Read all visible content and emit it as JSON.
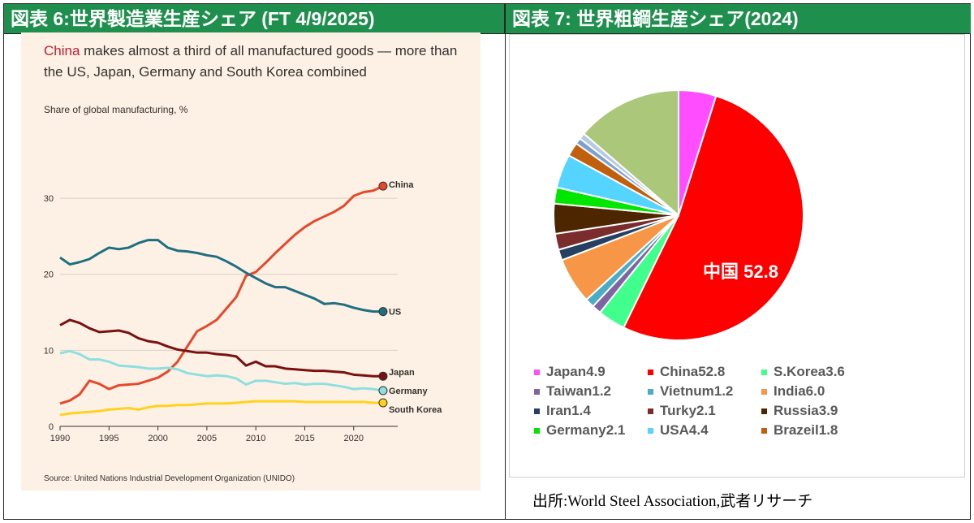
{
  "header_left": "図表 6:世界製造業生産シェア (FT 4/9/2025)",
  "header_right": "図表 7: 世界粗鋼生産シェア(2024)",
  "ft": {
    "title_red": "China",
    "title_rest": " makes almost a third of all manufactured goods — more than the US, Japan, Germany and South Korea combined",
    "subtitle": "Share of global manufacturing, %",
    "source": "Source: United Nations Industrial Development Organization (UNIDO)"
  },
  "pie_source": "出所:World Steel Association,武者リサーチ",
  "chart_data": [
    {
      "type": "line",
      "title": "China makes almost a third of all manufactured goods — more than the US, Japan, Germany and South Korea combined",
      "ylabel": "Share of global manufacturing, %",
      "xlim": [
        1990,
        2024
      ],
      "ylim": [
        0,
        33
      ],
      "x_ticks": [
        1990,
        1995,
        2000,
        2005,
        2010,
        2015,
        2020
      ],
      "y_ticks": [
        0,
        10,
        20,
        30
      ],
      "grid": true,
      "x": [
        1990,
        1991,
        1992,
        1993,
        1994,
        1995,
        1996,
        1997,
        1998,
        1999,
        2000,
        2001,
        2002,
        2003,
        2004,
        2005,
        2006,
        2007,
        2008,
        2009,
        2010,
        2011,
        2012,
        2013,
        2014,
        2015,
        2016,
        2017,
        2018,
        2019,
        2020,
        2021,
        2022,
        2023
      ],
      "series": [
        {
          "name": "China",
          "color": "#e5482b",
          "values": [
            3.0,
            3.4,
            4.2,
            6.0,
            5.6,
            4.9,
            5.4,
            5.5,
            5.6,
            6.0,
            6.4,
            7.2,
            8.5,
            10.5,
            12.5,
            13.2,
            14.0,
            15.5,
            17.0,
            19.8,
            20.3,
            21.5,
            22.8,
            24.0,
            25.2,
            26.2,
            27.0,
            27.6,
            28.2,
            29.0,
            30.3,
            30.8,
            31.0,
            31.6
          ]
        },
        {
          "name": "US",
          "color": "#1f6f80",
          "values": [
            22.2,
            21.3,
            21.6,
            22.0,
            22.8,
            23.5,
            23.3,
            23.5,
            24.1,
            24.5,
            24.5,
            23.5,
            23.1,
            23.0,
            22.8,
            22.5,
            22.3,
            21.7,
            21.0,
            20.2,
            19.5,
            18.8,
            18.3,
            18.3,
            17.8,
            17.3,
            16.8,
            16.1,
            16.2,
            16.0,
            15.6,
            15.3,
            15.1,
            15.1
          ]
        },
        {
          "name": "Japan",
          "color": "#7a1010",
          "values": [
            13.3,
            14.0,
            13.6,
            12.9,
            12.4,
            12.5,
            12.6,
            12.3,
            11.6,
            11.2,
            11.0,
            10.5,
            10.1,
            9.9,
            9.7,
            9.7,
            9.5,
            9.4,
            9.2,
            8.0,
            8.5,
            7.9,
            7.9,
            7.6,
            7.5,
            7.4,
            7.3,
            7.3,
            7.2,
            7.1,
            6.8,
            6.7,
            6.6,
            6.6
          ]
        },
        {
          "name": "Germany",
          "color": "#8ee0e0",
          "values": [
            9.6,
            9.9,
            9.5,
            8.8,
            8.8,
            8.5,
            8.0,
            7.9,
            7.8,
            7.6,
            7.6,
            7.7,
            7.5,
            7.0,
            6.8,
            6.6,
            6.7,
            6.6,
            6.3,
            5.5,
            6.0,
            6.0,
            5.8,
            5.6,
            5.7,
            5.5,
            5.6,
            5.6,
            5.4,
            5.2,
            4.9,
            5.0,
            4.9,
            4.7
          ]
        },
        {
          "name": "South Korea",
          "color": "#ffd21f",
          "values": [
            1.5,
            1.7,
            1.8,
            1.9,
            2.0,
            2.2,
            2.3,
            2.4,
            2.2,
            2.5,
            2.7,
            2.7,
            2.8,
            2.8,
            2.9,
            3.0,
            3.0,
            3.0,
            3.1,
            3.2,
            3.3,
            3.3,
            3.3,
            3.3,
            3.3,
            3.2,
            3.2,
            3.2,
            3.2,
            3.2,
            3.2,
            3.2,
            3.1,
            3.1
          ]
        }
      ]
    },
    {
      "type": "pie",
      "title": "",
      "start_angle_deg": 0,
      "direction": "clockwise",
      "slices": [
        {
          "name": "Japan",
          "label": "Japan4.9",
          "value": 4.9,
          "color": "#ff4dff"
        },
        {
          "name": "China",
          "label": "China52.8",
          "value": 52.8,
          "color": "#ff0000"
        },
        {
          "name": "S.Korea",
          "label": "S.Korea3.6",
          "value": 3.6,
          "color": "#40ff8c"
        },
        {
          "name": "Taiwan",
          "label": "Taiwan1.2",
          "value": 1.2,
          "color": "#8064a2"
        },
        {
          "name": "Vietnum",
          "label": "Vietnum1.2",
          "value": 1.2,
          "color": "#4bacc6"
        },
        {
          "name": "India",
          "label": "India6.0",
          "value": 6.0,
          "color": "#f79646"
        },
        {
          "name": "Iran",
          "label": "Iran1.4",
          "value": 1.4,
          "color": "#254061"
        },
        {
          "name": "Turky",
          "label": "Turky2.1",
          "value": 2.1,
          "color": "#7b2c2c"
        },
        {
          "name": "Russia",
          "label": "Russia3.9",
          "value": 3.9,
          "color": "#4d2600"
        },
        {
          "name": "Germany",
          "label": "Germany2.1",
          "value": 2.1,
          "color": "#00e600"
        },
        {
          "name": "USA",
          "label": "USA4.4",
          "value": 4.4,
          "color": "#55d4ff"
        },
        {
          "name": "Brazeil",
          "label": "Brazeil1.8",
          "value": 1.8,
          "color": "#c0600f"
        },
        {
          "name": "other-1",
          "label": "",
          "value": 0.8,
          "color": "#7f9fcf"
        },
        {
          "name": "other-2",
          "label": "",
          "value": 0.8,
          "color": "#b7c9e6"
        },
        {
          "name": "other-3",
          "label": "",
          "value": 13.8,
          "color": "#abc87a"
        }
      ],
      "callout": "中国 52.8"
    }
  ]
}
